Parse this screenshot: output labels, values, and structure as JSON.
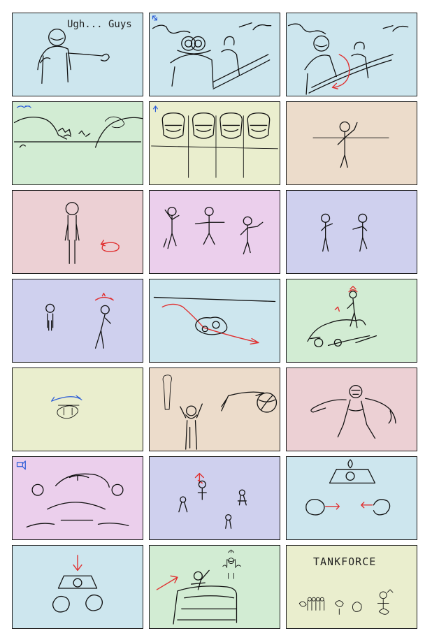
{
  "colors": {
    "blue": "#cde6ee",
    "green": "#d2ecd3",
    "yellow": "#eaeece",
    "peach": "#ecdccb",
    "pink": "#ecd0d4",
    "lilac": "#ebcfec",
    "lavender": "#cfd0ee",
    "border": "#1a1a1a",
    "ink": "#111111",
    "red_marker": "#e03030",
    "blue_marker": "#2a5bd7"
  },
  "panels": [
    {
      "id": 1,
      "bg": "blue",
      "caption": "Ugh... Guys"
    },
    {
      "id": 2,
      "bg": "blue"
    },
    {
      "id": 3,
      "bg": "blue"
    },
    {
      "id": 4,
      "bg": "green"
    },
    {
      "id": 5,
      "bg": "yellow"
    },
    {
      "id": 6,
      "bg": "peach"
    },
    {
      "id": 7,
      "bg": "pink"
    },
    {
      "id": 8,
      "bg": "lilac"
    },
    {
      "id": 9,
      "bg": "lavender"
    },
    {
      "id": 10,
      "bg": "lavender"
    },
    {
      "id": 11,
      "bg": "blue"
    },
    {
      "id": 12,
      "bg": "green"
    },
    {
      "id": 13,
      "bg": "yellow"
    },
    {
      "id": 14,
      "bg": "peach"
    },
    {
      "id": 15,
      "bg": "pink"
    },
    {
      "id": 16,
      "bg": "lilac"
    },
    {
      "id": 17,
      "bg": "lavender"
    },
    {
      "id": 18,
      "bg": "blue"
    },
    {
      "id": 19,
      "bg": "blue"
    },
    {
      "id": 20,
      "bg": "green"
    },
    {
      "id": 21,
      "bg": "yellow",
      "caption": "TANKFORCE"
    }
  ]
}
